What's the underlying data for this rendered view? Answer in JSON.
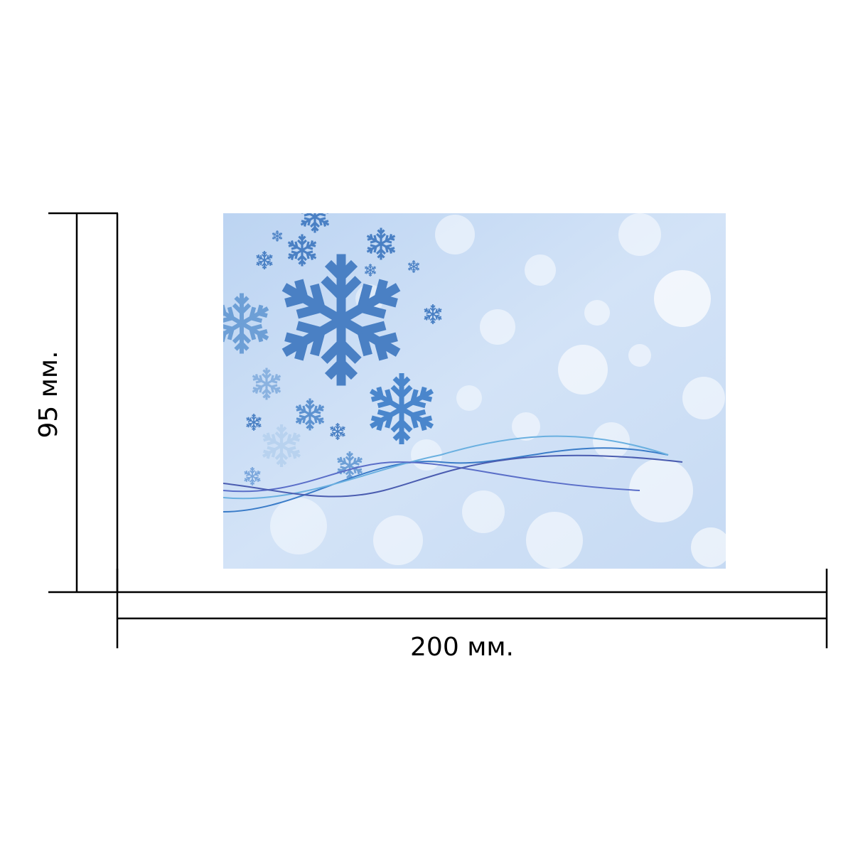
{
  "dimensions": {
    "height": "95 мм.",
    "width": "200 мм."
  }
}
